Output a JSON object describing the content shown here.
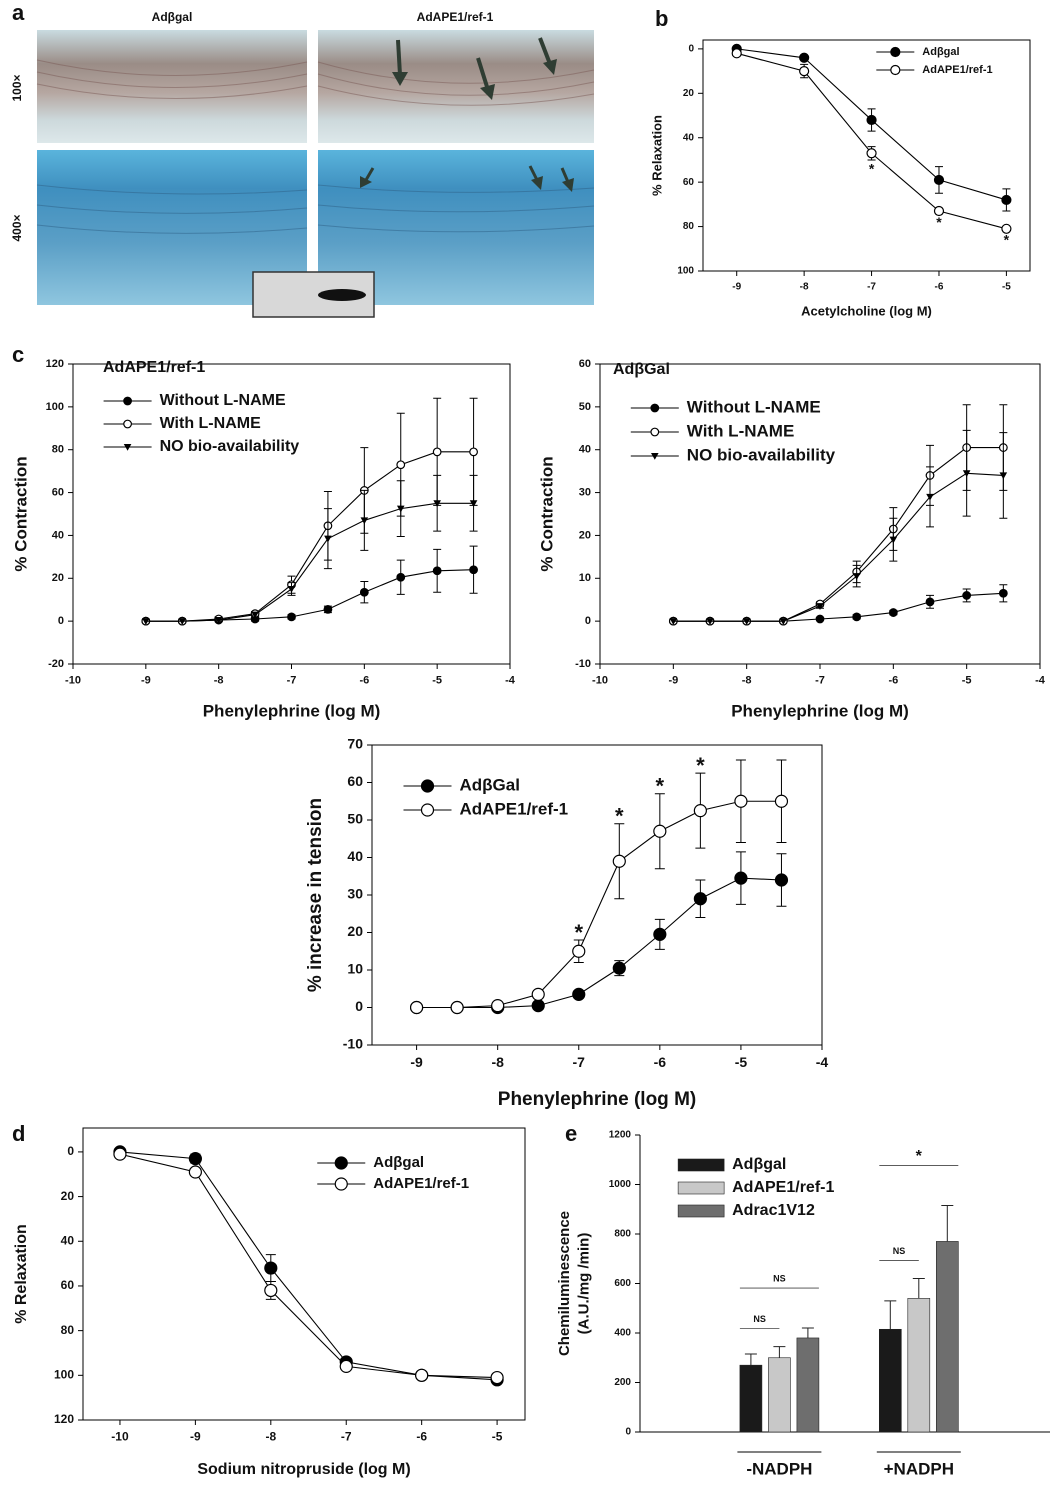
{
  "image_panel": {
    "panel_label": "a",
    "columns": [
      "Adβgal",
      "AdAPE1/ref-1"
    ],
    "rows": [
      "100×",
      "400×"
    ]
  },
  "chart_data": [
    {
      "type": "line",
      "panel_label": "b",
      "xlabel": "Acetylcholine (log M)",
      "ylabel": "% Relaxation",
      "x": [
        -9,
        -8,
        -7,
        -6,
        -5
      ],
      "xlim": [
        -9.5,
        -4.65
      ],
      "ylim": [
        100,
        -4
      ],
      "xticks": [
        -9,
        -8,
        -7,
        -6,
        -5
      ],
      "yticks": [
        0,
        20,
        40,
        60,
        80,
        100
      ],
      "legend": "upper right",
      "series": [
        {
          "name": "Adβgal",
          "marker": "filled-circle",
          "color": "#000000",
          "values": [
            0,
            4,
            32,
            59,
            68
          ],
          "errors": [
            1,
            1,
            5,
            6,
            5
          ]
        },
        {
          "name": "AdAPE1/ref-1",
          "marker": "open-circle",
          "color": "#000000",
          "values": [
            2,
            10,
            47,
            73,
            81
          ],
          "errors": [
            1,
            3,
            3,
            1,
            1
          ]
        }
      ],
      "significance": [
        {
          "x": -7,
          "label": "*"
        },
        {
          "x": -6,
          "label": "*"
        },
        {
          "x": -5,
          "label": "*"
        }
      ]
    },
    {
      "type": "line",
      "panel_label": "c",
      "title": "AdAPE1/ref-1",
      "xlabel": "Phenylephrine (log M)",
      "ylabel": "% Contraction",
      "x": [
        -9,
        -8.5,
        -8,
        -7.5,
        -7,
        -6.5,
        -6,
        -5.5,
        -5,
        -4.5
      ],
      "xlim": [
        -10,
        -4
      ],
      "ylim": [
        -20,
        120
      ],
      "xticks": [
        -10,
        -9,
        -8,
        -7,
        -6,
        -5,
        -4
      ],
      "yticks": [
        -20,
        0,
        20,
        40,
        60,
        80,
        100,
        120
      ],
      "legend": "upper left",
      "series": [
        {
          "name": "Without L-NAME",
          "marker": "filled-circle",
          "color": "#000000",
          "values": [
            0,
            0,
            0.5,
            1,
            2,
            5.5,
            13.5,
            20.5,
            23.5,
            24
          ],
          "errors": [
            0,
            0,
            0.5,
            1,
            1,
            1.5,
            5,
            8,
            10,
            11
          ]
        },
        {
          "name": "With L-NAME",
          "marker": "open-circle",
          "color": "#000000",
          "values": [
            0,
            0,
            1,
            3.5,
            17,
            44.5,
            61,
            73,
            79,
            79
          ],
          "errors": [
            0,
            0,
            1,
            1,
            4,
            16,
            20,
            24,
            25,
            25
          ]
        },
        {
          "name": "NO bio-availability",
          "marker": "triangle-down",
          "color": "#000000",
          "values": [
            0,
            0,
            0.5,
            3,
            15,
            38.5,
            47,
            52.5,
            55,
            55
          ],
          "errors": [
            0,
            0,
            0.5,
            1,
            3,
            14,
            14,
            13,
            13,
            13
          ]
        }
      ]
    },
    {
      "type": "line",
      "title": "AdβGal",
      "xlabel": "Phenylephrine (log M)",
      "ylabel": "% Contraction",
      "x": [
        -9,
        -8.5,
        -8,
        -7.5,
        -7,
        -6.5,
        -6,
        -5.5,
        -5,
        -4.5
      ],
      "xlim": [
        -10,
        -4
      ],
      "ylim": [
        -10,
        60
      ],
      "xticks": [
        -10,
        -9,
        -8,
        -7,
        -6,
        -5,
        -4
      ],
      "yticks": [
        -10,
        0,
        10,
        20,
        30,
        40,
        50,
        60
      ],
      "legend": "upper left",
      "series": [
        {
          "name": "Without L-NAME",
          "marker": "filled-circle",
          "color": "#000000",
          "values": [
            0,
            0,
            0,
            0,
            0.5,
            1,
            2,
            4.5,
            6,
            6.5
          ],
          "errors": [
            0,
            0,
            0,
            0,
            0.3,
            0.5,
            0.5,
            1.5,
            1.5,
            2
          ]
        },
        {
          "name": "With L-NAME",
          "marker": "open-circle",
          "color": "#000000",
          "values": [
            0,
            0,
            0,
            0,
            4,
            11.5,
            21.5,
            34,
            40.5,
            40.5
          ],
          "errors": [
            0,
            0,
            0,
            0,
            0.5,
            2.5,
            5,
            7,
            10,
            10
          ]
        },
        {
          "name": "NO bio-availability",
          "marker": "triangle-down",
          "color": "#000000",
          "values": [
            0,
            0,
            0,
            0,
            3.5,
            10.5,
            19,
            29,
            34.5,
            34
          ],
          "errors": [
            0,
            0,
            0,
            0,
            0.5,
            2.5,
            5,
            7,
            10,
            10
          ]
        }
      ]
    },
    {
      "type": "line",
      "xlabel": "Phenylephrine (log M)",
      "ylabel": "% increase in tension",
      "x": [
        -9,
        -8.5,
        -8,
        -7.5,
        -7,
        -6.5,
        -6,
        -5.5,
        -5,
        -4.5
      ],
      "xlim": [
        -9.55,
        -4
      ],
      "ylim": [
        -10,
        70
      ],
      "xticks": [
        -9,
        -8,
        -7,
        -6,
        -5,
        -4
      ],
      "yticks": [
        -10,
        0,
        10,
        20,
        30,
        40,
        50,
        60,
        70
      ],
      "legend": "upper left",
      "series": [
        {
          "name": "AdβGal",
          "marker": "filled-circle",
          "color": "#000000",
          "values": [
            0,
            0,
            0,
            0.5,
            3.5,
            10.5,
            19.5,
            29,
            34.5,
            34
          ],
          "errors": [
            0,
            0,
            0,
            0.5,
            1,
            2,
            4,
            5,
            7,
            7
          ]
        },
        {
          "name": "AdAPE1/ref-1",
          "marker": "open-circle",
          "color": "#000000",
          "values": [
            0,
            0,
            0.5,
            3.5,
            15,
            39,
            47,
            52.5,
            55,
            55
          ],
          "errors": [
            0,
            0,
            0.5,
            1,
            3,
            10,
            10,
            10,
            11,
            11
          ]
        }
      ],
      "significance": [
        {
          "x": -7,
          "label": "*"
        },
        {
          "x": -6.5,
          "label": "*"
        },
        {
          "x": -6,
          "label": "*"
        },
        {
          "x": -5.5,
          "label": "*"
        }
      ]
    },
    {
      "type": "line",
      "panel_label": "d",
      "xlabel": "Sodium nitropruside (log M)",
      "ylabel": "% Relaxation",
      "x": [
        -10,
        -9,
        -8,
        -7,
        -6,
        -5
      ],
      "xlim": [
        -10.49,
        -4.63
      ],
      "ylim": [
        120,
        -10.7
      ],
      "xticks": [
        -10,
        -9,
        -8,
        -7,
        -6,
        -5
      ],
      "yticks": [
        0,
        20,
        40,
        60,
        80,
        100,
        120
      ],
      "legend": "upper right",
      "series": [
        {
          "name": "Adβgal",
          "marker": "filled-circle",
          "color": "#000000",
          "values": [
            0,
            3,
            52,
            94,
            100,
            102
          ],
          "errors": [
            1,
            2,
            6,
            1,
            1,
            1
          ]
        },
        {
          "name": "AdAPE1/ref-1",
          "marker": "open-circle",
          "color": "#000000",
          "values": [
            1,
            9,
            62,
            96,
            100,
            101
          ],
          "errors": [
            1,
            1,
            4,
            1,
            1,
            1
          ]
        }
      ]
    },
    {
      "type": "bar",
      "panel_label": "e",
      "ylabel": [
        "Chemiluminescence",
        "(A.U./mg /min)"
      ],
      "categories": [
        "-NADPH",
        "+NADPH"
      ],
      "ylim": [
        0,
        1200
      ],
      "yticks": [
        0,
        200,
        400,
        600,
        800,
        1000,
        1200
      ],
      "legend": "upper left",
      "series": [
        {
          "name": "Adβgal",
          "color": "#1a1a1a",
          "values": [
            270,
            415
          ],
          "errors": [
            45,
            115
          ]
        },
        {
          "name": "AdAPE1/ref-1",
          "color": "#c8c8c8",
          "values": [
            300,
            540
          ],
          "errors": [
            45,
            80
          ]
        },
        {
          "name": "Adrac1V12",
          "color": "#6e6e6e",
          "values": [
            380,
            770
          ],
          "errors": [
            40,
            145
          ]
        }
      ],
      "comparisons": [
        {
          "category": 0,
          "between": [
            0,
            1
          ],
          "label": "NS"
        },
        {
          "category": 0,
          "between": [
            0,
            2
          ],
          "label": "NS"
        },
        {
          "category": 1,
          "between": [
            0,
            1
          ],
          "label": "NS"
        },
        {
          "category": 1,
          "between": [
            0,
            2
          ],
          "label": "*"
        }
      ]
    }
  ]
}
